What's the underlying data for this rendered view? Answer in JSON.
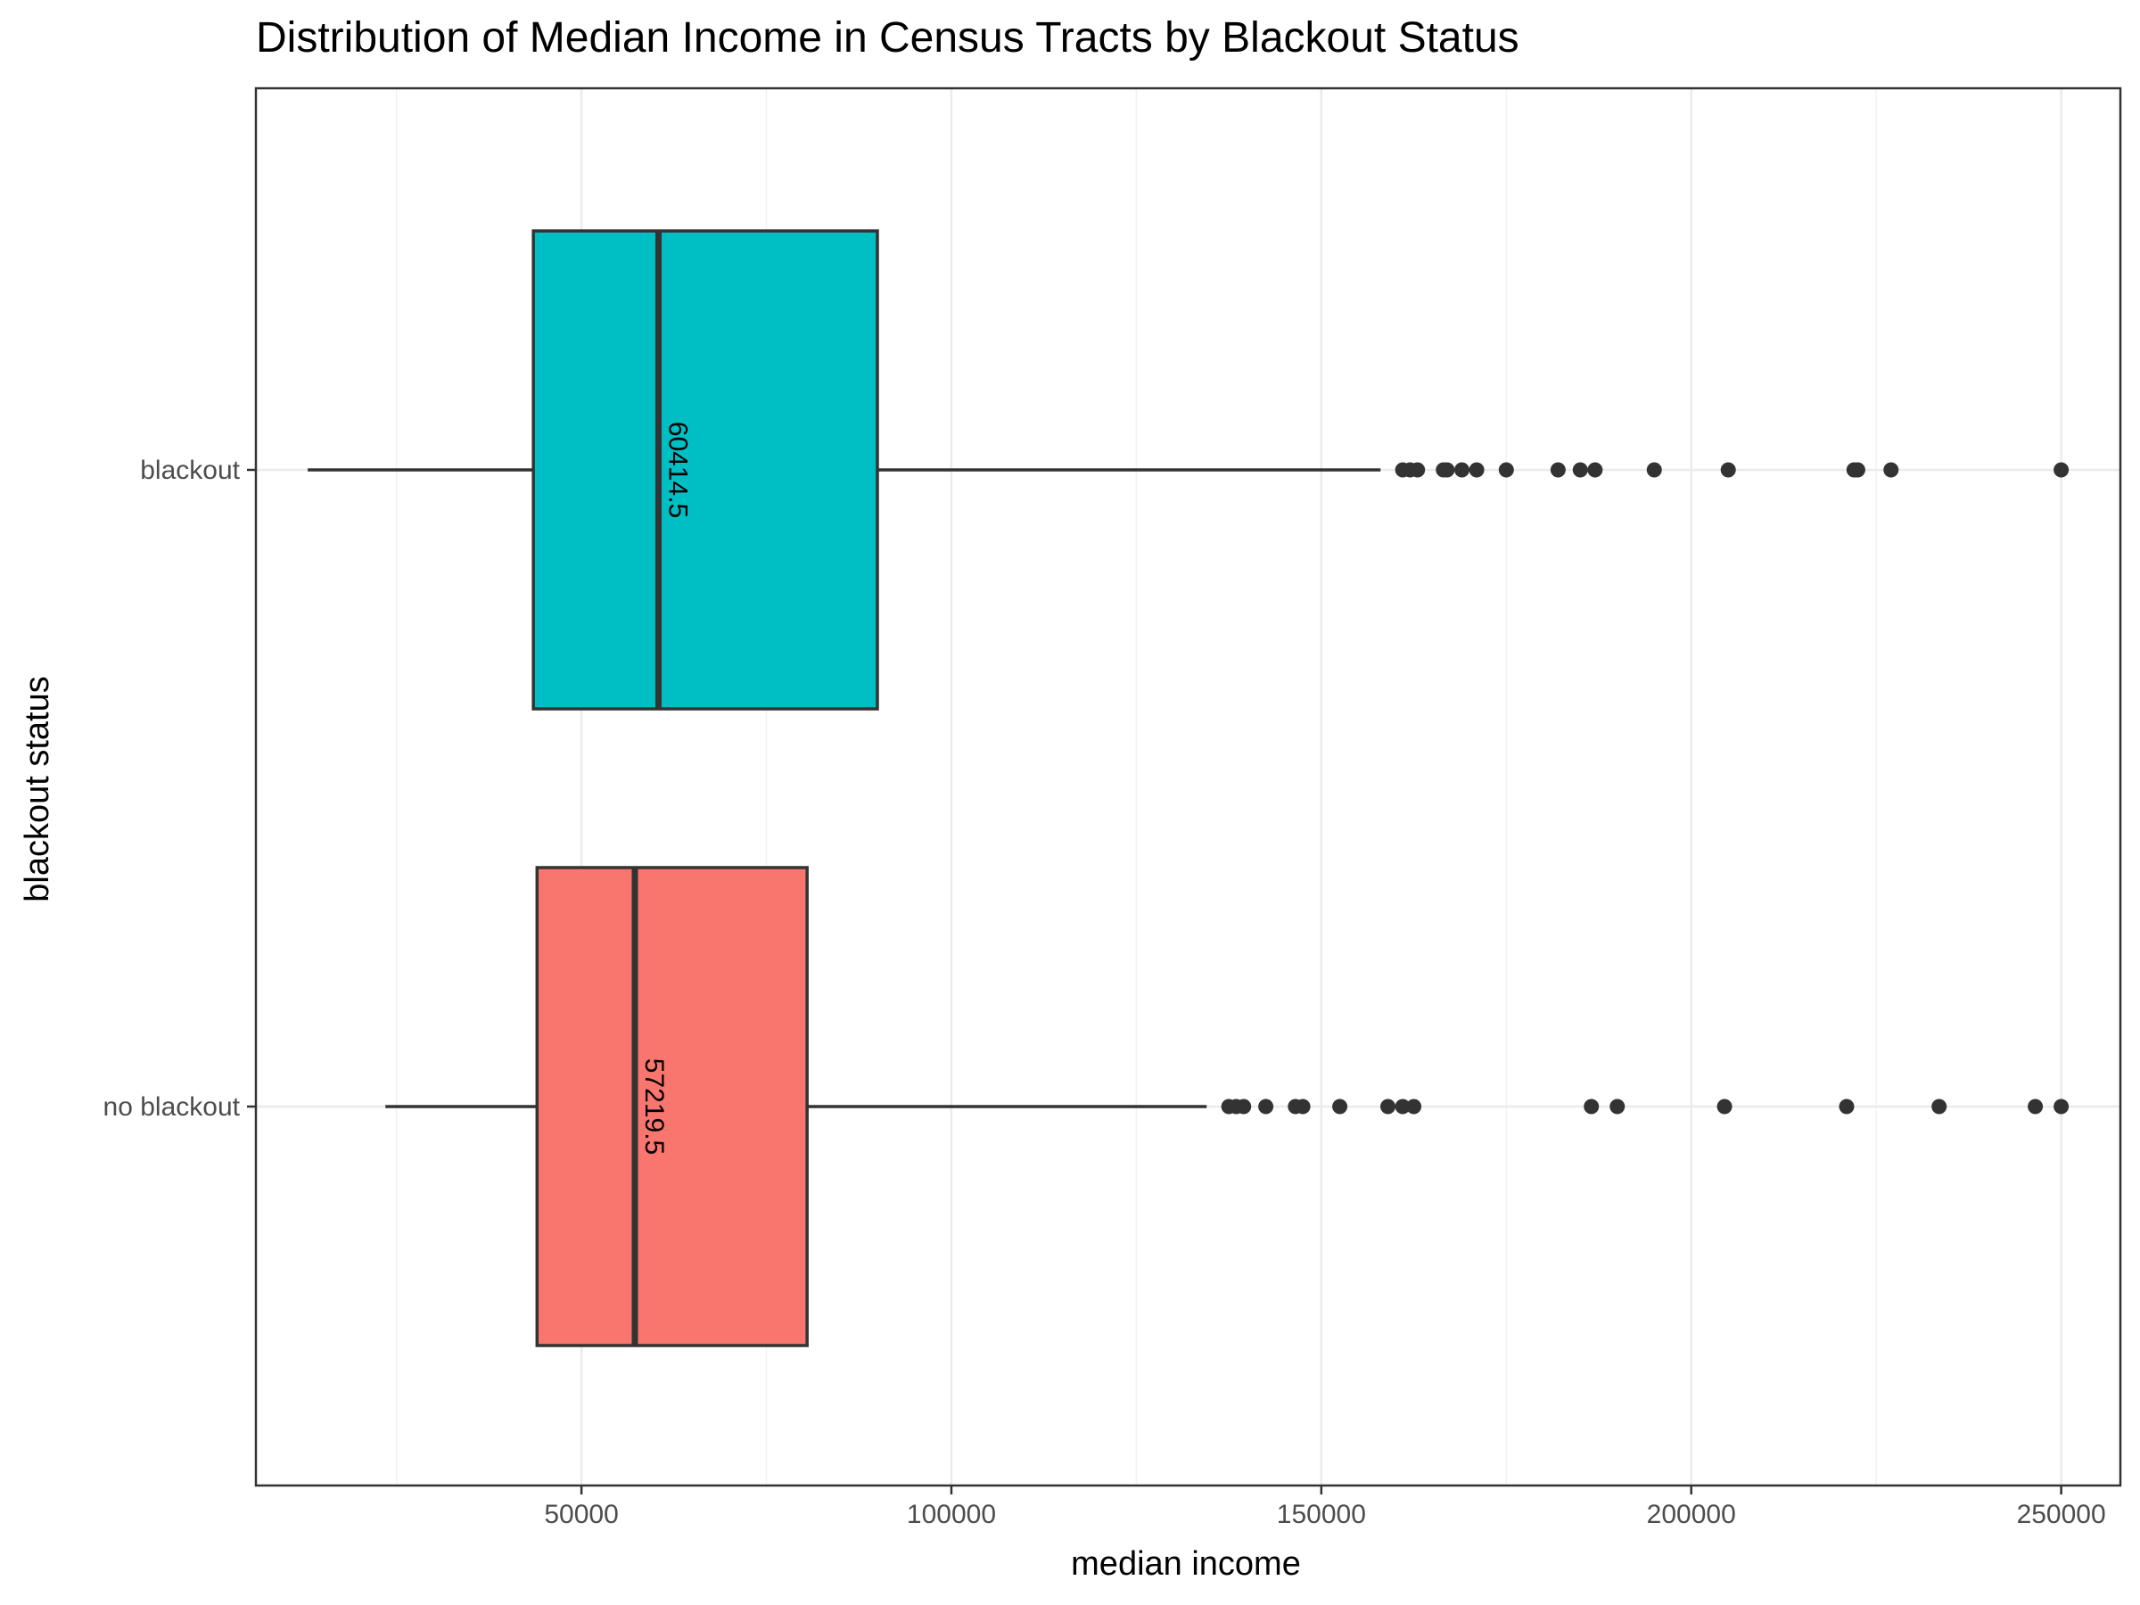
{
  "chart_data": {
    "type": "boxplot",
    "orientation": "horizontal",
    "title": "Distribution of Median Income in Census Tracts by Blackout Status",
    "xlabel": "median income",
    "ylabel": "blackout status",
    "xlim": [
      6000,
      258000
    ],
    "x_ticks": [
      50000,
      100000,
      150000,
      200000,
      250000
    ],
    "x_tick_labels": [
      "50000",
      "100000",
      "150000",
      "200000",
      "250000"
    ],
    "grid": true,
    "legend": "none",
    "series": [
      {
        "category": "blackout",
        "color": "#00BFC4",
        "min": 13000,
        "q1": 43500,
        "median": 60414.5,
        "median_label": "60414.5",
        "q3": 90000,
        "whisker_max": 158000,
        "outliers": [
          161000,
          162000,
          163000,
          166500,
          167000,
          169000,
          171000,
          175000,
          182000,
          185000,
          187000,
          195000,
          205000,
          222000,
          222500,
          227000,
          250000
        ]
      },
      {
        "category": "no blackout",
        "color": "#F8766D",
        "min": 23500,
        "q1": 44000,
        "median": 57219.5,
        "median_label": "57219.5",
        "q3": 80500,
        "whisker_max": 134500,
        "outliers": [
          137500,
          138500,
          139500,
          142500,
          146500,
          147500,
          152500,
          159000,
          161000,
          162500,
          186500,
          190000,
          204500,
          221000,
          233500,
          246500,
          250000
        ]
      }
    ]
  }
}
